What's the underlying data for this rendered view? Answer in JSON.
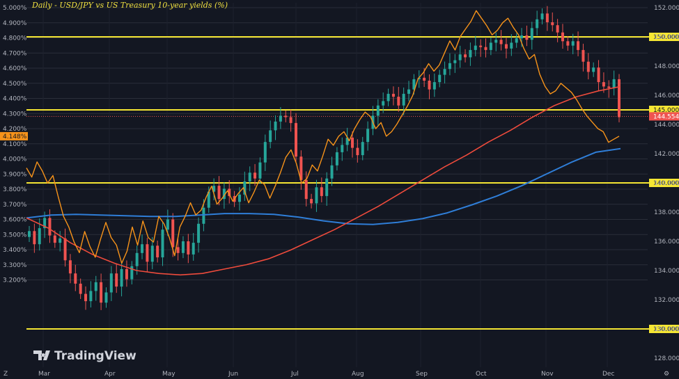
{
  "chart_data": {
    "type": "line",
    "title": "Daily - USD/JPY vs US Treasury 10-year yields (%)",
    "watermark": "TradingView",
    "x_ticks": [
      "Mar",
      "Apr",
      "May",
      "Jun",
      "Jul",
      "Aug",
      "Sep",
      "Oct",
      "Nov",
      "Dec"
    ],
    "left_axis": {
      "ticks": [
        "5.000%",
        "4.900%",
        "4.800%",
        "4.700%",
        "4.600%",
        "4.500%",
        "4.400%",
        "4.300%",
        "4.200%",
        "4.100%",
        "4.000%",
        "3.900%",
        "3.800%",
        "3.700%",
        "3.600%",
        "3.500%",
        "3.400%",
        "3.300%",
        "3.200%"
      ],
      "ylim": [
        3.15,
        5.04
      ],
      "last_value_label": "4.148%"
    },
    "right_axis": {
      "ticks": [
        "152.000",
        "150.000",
        "148.000",
        "146.000",
        "144.000",
        "142.000",
        "140.000",
        "138.000",
        "136.000",
        "134.000",
        "132.000",
        "130.000",
        "128.000"
      ],
      "ylim": [
        127.3,
        152.3
      ],
      "level_labels": [
        "150.000",
        "145.000",
        "140.000",
        "130.000"
      ],
      "levels": [
        150.0,
        145.0,
        140.0,
        130.0
      ],
      "last_price_label": "144.554",
      "last_price": 144.554
    },
    "colors": {
      "background": "#131722",
      "level_line": "#f5e633",
      "up_candle": "#26a69a",
      "down_candle": "#ef5350",
      "yield_line": "#f7931a",
      "ma_red": "#ef4b3c",
      "ma_blue": "#2f7ed8",
      "last_price_bg": "#ef5350",
      "yield_label_bg": "#f7931a"
    },
    "series": [
      {
        "name": "USD/JPY",
        "kind": "candles-close",
        "axis": "right",
        "values": [
          136.7,
          135.8,
          136.9,
          137.6,
          136.4,
          135.9,
          136.2,
          134.7,
          133.8,
          133.1,
          132.4,
          131.9,
          132.6,
          133.2,
          131.8,
          132.5,
          133.8,
          132.9,
          134.1,
          133.4,
          134.3,
          135.2,
          135.8,
          134.6,
          135.7,
          134.9,
          136.8,
          137.5,
          135.6,
          135.2,
          136.0,
          135.1,
          135.9,
          137.2,
          138.3,
          139.4,
          139.8,
          138.9,
          139.6,
          139.1,
          138.7,
          139.2,
          140.1,
          140.7,
          140.3,
          141.4,
          142.8,
          143.6,
          144.2,
          144.6,
          144.5,
          144.1,
          141.8,
          140.2,
          138.9,
          138.6,
          139.7,
          139.1,
          140.3,
          141.2,
          142.1,
          142.6,
          143.1,
          142.4,
          141.9,
          142.8,
          143.7,
          144.6,
          145.3,
          145.6,
          146.1,
          145.9,
          145.3,
          146.1,
          146.4,
          147.1,
          147.2,
          147.0,
          146.4,
          146.9,
          147.4,
          147.8,
          148.2,
          148.4,
          148.8,
          148.6,
          149.1,
          149.4,
          149.3,
          149.1,
          149.6,
          149.8,
          149.5,
          149.2,
          149.6,
          149.9,
          150.1,
          149.8,
          150.6,
          151.2,
          151.6,
          151.0,
          150.8,
          150.3,
          149.7,
          149.4,
          149.7,
          149.1,
          148.3,
          147.6,
          147.9,
          146.9,
          146.6,
          146.5,
          147.1,
          144.5
        ]
      },
      {
        "name": "US 10Y yield",
        "kind": "line",
        "axis": "left",
        "values": [
          3.94,
          3.88,
          3.98,
          3.92,
          3.84,
          3.89,
          3.75,
          3.62,
          3.55,
          3.45,
          3.38,
          3.52,
          3.42,
          3.35,
          3.47,
          3.58,
          3.48,
          3.43,
          3.31,
          3.39,
          3.55,
          3.43,
          3.59,
          3.48,
          3.45,
          3.62,
          3.57,
          3.48,
          3.36,
          3.55,
          3.62,
          3.71,
          3.63,
          3.66,
          3.75,
          3.82,
          3.7,
          3.74,
          3.79,
          3.72,
          3.77,
          3.81,
          3.71,
          3.78,
          3.86,
          3.83,
          3.74,
          3.82,
          3.91,
          4.01,
          4.06,
          3.97,
          3.84,
          3.87,
          3.96,
          3.92,
          4.02,
          4.13,
          4.09,
          4.15,
          4.18,
          4.12,
          4.2,
          4.26,
          4.31,
          4.28,
          4.2,
          4.24,
          4.15,
          4.18,
          4.23,
          4.29,
          4.35,
          4.42,
          4.53,
          4.57,
          4.63,
          4.58,
          4.62,
          4.7,
          4.78,
          4.72,
          4.81,
          4.86,
          4.91,
          4.98,
          4.93,
          4.88,
          4.82,
          4.85,
          4.9,
          4.93,
          4.87,
          4.82,
          4.73,
          4.66,
          4.69,
          4.56,
          4.48,
          4.43,
          4.45,
          4.5,
          4.47,
          4.44,
          4.39,
          4.33,
          4.28,
          4.24,
          4.2,
          4.18,
          4.11,
          4.13,
          4.15
        ]
      },
      {
        "name": "MA red",
        "kind": "line",
        "axis": "right",
        "values": [
          137.6,
          136.9,
          135.9,
          135.1,
          134.5,
          134.0,
          133.8,
          133.7,
          133.8,
          134.1,
          134.4,
          134.8,
          135.4,
          136.1,
          136.8,
          137.6,
          138.4,
          139.3,
          140.2,
          141.1,
          141.9,
          142.8,
          143.6,
          144.5,
          145.3,
          145.9,
          146.3,
          146.6
        ]
      },
      {
        "name": "MA blue",
        "kind": "line",
        "axis": "right",
        "values": [
          137.6,
          137.8,
          137.85,
          137.8,
          137.75,
          137.7,
          137.7,
          137.8,
          137.9,
          137.9,
          137.85,
          137.65,
          137.4,
          137.2,
          137.15,
          137.3,
          137.55,
          137.95,
          138.5,
          139.1,
          139.8,
          140.6,
          141.4,
          142.1,
          142.35
        ]
      }
    ]
  }
}
